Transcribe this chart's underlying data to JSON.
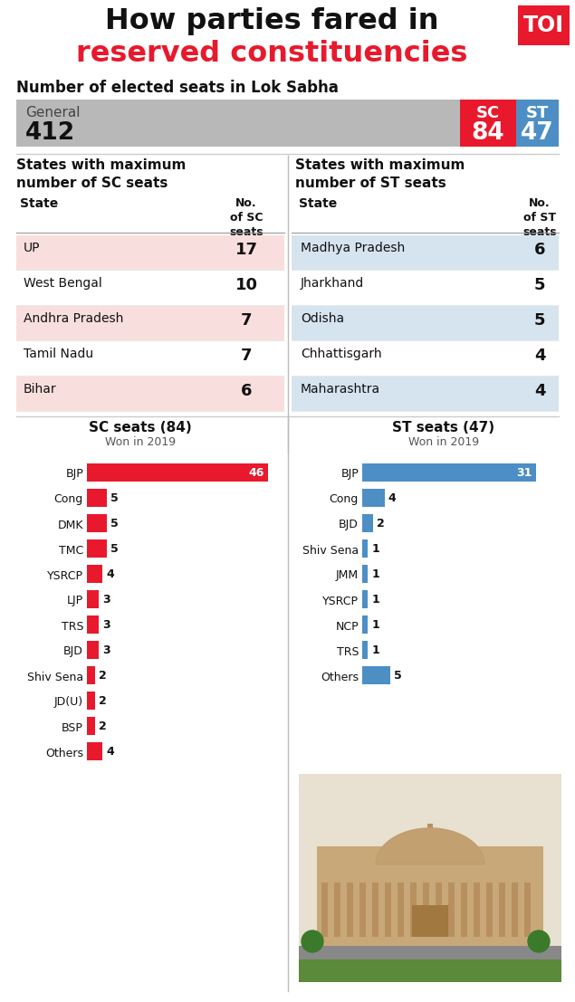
{
  "title_line1": "How parties fared in",
  "title_line2": "reserved constituencies",
  "subtitle": "Number of elected seats in Lok Sabha",
  "general_seats": "412",
  "sc_seats": "84",
  "st_seats": "47",
  "sc_states": [
    {
      "state": "UP",
      "seats": "17",
      "highlight": true
    },
    {
      "state": "West Bengal",
      "seats": "10",
      "highlight": false
    },
    {
      "state": "Andhra Pradesh",
      "seats": "7",
      "highlight": true
    },
    {
      "state": "Tamil Nadu",
      "seats": "7",
      "highlight": false
    },
    {
      "state": "Bihar",
      "seats": "6",
      "highlight": true
    }
  ],
  "st_states": [
    {
      "state": "Madhya Pradesh",
      "seats": "6",
      "highlight": true
    },
    {
      "state": "Jharkhand",
      "seats": "5",
      "highlight": false
    },
    {
      "state": "Odisha",
      "seats": "5",
      "highlight": true
    },
    {
      "state": "Chhattisgarh",
      "seats": "4",
      "highlight": false
    },
    {
      "state": "Maharashtra",
      "seats": "4",
      "highlight": true
    }
  ],
  "sc_parties": [
    {
      "party": "BJP",
      "seats": 46
    },
    {
      "party": "Cong",
      "seats": 5
    },
    {
      "party": "DMK",
      "seats": 5
    },
    {
      "party": "TMC",
      "seats": 5
    },
    {
      "party": "YSRCP",
      "seats": 4
    },
    {
      "party": "LJP",
      "seats": 3
    },
    {
      "party": "TRS",
      "seats": 3
    },
    {
      "party": "BJD",
      "seats": 3
    },
    {
      "party": "Shiv Sena",
      "seats": 2
    },
    {
      "party": "JD(U)",
      "seats": 2
    },
    {
      "party": "BSP",
      "seats": 2
    },
    {
      "party": "Others",
      "seats": 4
    }
  ],
  "st_parties": [
    {
      "party": "BJP",
      "seats": 31
    },
    {
      "party": "Cong",
      "seats": 4
    },
    {
      "party": "BJD",
      "seats": 2
    },
    {
      "party": "Shiv Sena",
      "seats": 1
    },
    {
      "party": "JMM",
      "seats": 1
    },
    {
      "party": "YSRCP",
      "seats": 1
    },
    {
      "party": "NCP",
      "seats": 1
    },
    {
      "party": "TRS",
      "seats": 1
    },
    {
      "party": "Others",
      "seats": 5
    }
  ],
  "colors": {
    "red": "#e8192c",
    "blue": "#4d8fc4",
    "sc_red_bg": "#f9dede",
    "st_blue_bg": "#d6e4f0",
    "general_gray": "#b8b8b8",
    "white": "#ffffff",
    "black": "#111111",
    "toi_red": "#e8192c",
    "divider": "#cccccc",
    "text_dark": "#1a1a1a",
    "text_mid": "#444444"
  }
}
